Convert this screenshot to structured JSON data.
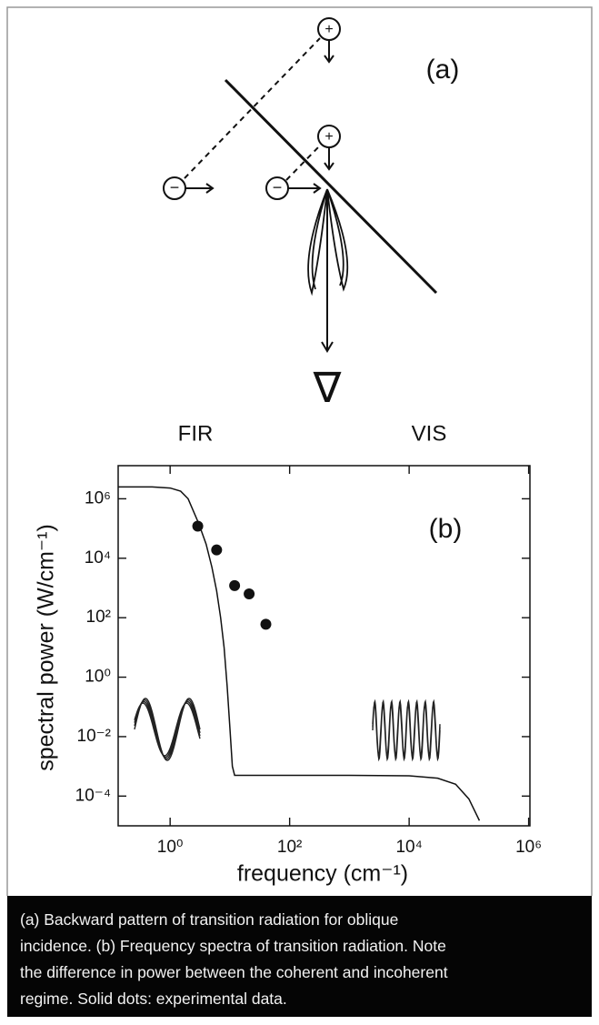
{
  "diagram": {
    "label": "(a)",
    "charges": [
      "+",
      "+",
      "−",
      "−"
    ],
    "detector": "∇",
    "left_regime": "FIR",
    "right_regime": "VIS"
  },
  "chart_data": {
    "type": "line",
    "annotation": "(b)",
    "x_label": "frequency (cm⁻¹)",
    "y_label": "spectral power (W/cm⁻¹)",
    "xlog": true,
    "ylog": true,
    "xlim": [
      0.135,
      1050000
    ],
    "ylim": [
      1e-05,
      13000000
    ],
    "xticks": [
      {
        "value": 1,
        "label": "10⁰"
      },
      {
        "value": 100,
        "label": "10²"
      },
      {
        "value": 10000,
        "label": "10⁴"
      },
      {
        "value": 1000000,
        "label": "10⁶"
      }
    ],
    "yticks": [
      {
        "value": 0.0001,
        "label": "10⁻⁴"
      },
      {
        "value": 0.01,
        "label": "10⁻²"
      },
      {
        "value": 1,
        "label": "10⁰"
      },
      {
        "value": 100,
        "label": "10²"
      },
      {
        "value": 10000,
        "label": "10⁴"
      },
      {
        "value": 1000000,
        "label": "10⁶"
      }
    ],
    "series": [
      {
        "style": "line",
        "color": "#111111",
        "x": [
          0.135,
          0.5,
          1,
          1.5,
          2,
          3,
          4,
          5,
          6,
          7,
          8,
          9,
          10,
          11,
          12,
          100,
          1000,
          10000,
          30000,
          60000,
          100000,
          150000
        ],
        "values": [
          2500000,
          2500000,
          2300000,
          1800000,
          1000000,
          150000,
          30000,
          5000,
          800,
          100,
          10,
          0.5,
          0.02,
          0.001,
          0.0005,
          0.0005,
          0.0005,
          0.00048,
          0.0004,
          0.00025,
          8e-05,
          1.5e-05
        ]
      },
      {
        "style": "markers",
        "color": "#111111",
        "x": [
          2.9,
          6,
          12,
          21,
          40
        ],
        "values": [
          120000,
          19000,
          1200,
          630,
          60
        ]
      }
    ]
  },
  "caption": [
    "(a) Backward pattern of transition radiation for oblique",
    "incidence. (b) Frequency spectra of transition radiation. Note",
    "the difference in power between the coherent and incoherent",
    "regime. Solid dots: experimental data."
  ]
}
